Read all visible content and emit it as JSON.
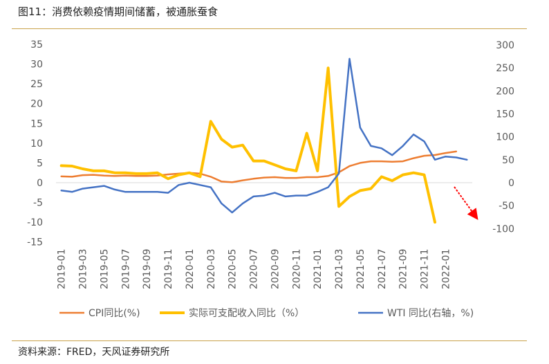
{
  "header": {
    "title": "图11：消费依赖疫情期间储蓄，被通胀蚕食"
  },
  "footer": {
    "source": "资料来源：FRED，天风证券研究所"
  },
  "colors": {
    "cpi": "#ed7d31",
    "income": "#ffc000",
    "wti": "#4472c4",
    "arrow": "#ff0000",
    "rule": "#c9a24a"
  },
  "chart_data": {
    "type": "line",
    "x": [
      "2019-01",
      "2019-02",
      "2019-03",
      "2019-04",
      "2019-05",
      "2019-06",
      "2019-07",
      "2019-08",
      "2019-09",
      "2019-10",
      "2019-11",
      "2019-12",
      "2020-01",
      "2020-02",
      "2020-03",
      "2020-04",
      "2020-05",
      "2020-06",
      "2020-07",
      "2020-08",
      "2020-09",
      "2020-10",
      "2020-11",
      "2020-12",
      "2021-01",
      "2021-02",
      "2021-03",
      "2021-04",
      "2021-05",
      "2021-06",
      "2021-07",
      "2021-08",
      "2021-09",
      "2021-10",
      "2021-11",
      "2021-12",
      "2022-01",
      "2022-02",
      "2022-03"
    ],
    "x_tick_labels": [
      "2019-01",
      "2019-03",
      "2019-05",
      "2019-07",
      "2019-09",
      "2019-11",
      "2020-01",
      "2020-03",
      "2020-05",
      "2020-07",
      "2020-09",
      "2020-11",
      "2021-01",
      "2021-03",
      "2021-05",
      "2021-07",
      "2021-09",
      "2021-11",
      "2022-01"
    ],
    "y_left": {
      "ylim": [
        -15,
        35
      ],
      "ticks": [
        "-15",
        "-10",
        "-5",
        "0",
        "5",
        "10",
        "15",
        "20",
        "25",
        "30",
        "35"
      ]
    },
    "y_right": {
      "ylim": [
        -100,
        300
      ],
      "ticks": [
        "-100",
        "-50",
        "0",
        "50",
        "100",
        "150",
        "200",
        "250",
        "300"
      ]
    },
    "grid": false,
    "legend": "bottom",
    "series": [
      {
        "name": "CPI同比(%)",
        "axis": "left",
        "values": [
          1.6,
          1.5,
          1.9,
          2.0,
          1.8,
          1.7,
          1.8,
          1.7,
          1.7,
          1.8,
          2.1,
          2.3,
          2.5,
          2.3,
          1.5,
          0.3,
          0.1,
          0.6,
          1.0,
          1.3,
          1.4,
          1.2,
          1.2,
          1.4,
          1.4,
          1.7,
          2.6,
          4.2,
          5.0,
          5.4,
          5.4,
          5.3,
          5.4,
          6.2,
          6.8,
          7.0,
          7.5,
          7.9,
          null
        ]
      },
      {
        "name": "实际可支配收入同比（%）",
        "axis": "left",
        "values": [
          4.3,
          4.2,
          3.5,
          3.0,
          3.0,
          2.5,
          2.5,
          2.3,
          2.3,
          2.5,
          1.0,
          2.0,
          2.5,
          1.5,
          15.5,
          11.0,
          9.0,
          9.5,
          5.5,
          5.5,
          4.5,
          3.5,
          3.0,
          12.5,
          3.0,
          29.0,
          -6.0,
          -3.5,
          -2.0,
          -1.5,
          1.5,
          0.5,
          2.0,
          2.5,
          2.0,
          -10.0,
          null,
          null,
          null
        ]
      },
      {
        "name": "WTI 同比(右轴，%)",
        "axis": "right",
        "values": [
          -17,
          -20,
          -13,
          -10,
          -7,
          -15,
          -20,
          -20,
          -20,
          -20,
          -22,
          -5,
          0,
          -5,
          -10,
          -45,
          -65,
          -45,
          -30,
          -28,
          -22,
          -30,
          -28,
          -28,
          -20,
          -10,
          20,
          270,
          120,
          80,
          75,
          60,
          80,
          105,
          90,
          50,
          57,
          55,
          50
        ]
      }
    ],
    "annotations": [
      {
        "type": "arrow",
        "color": "#ff0000",
        "description": "downward red arrow after 2022-01"
      }
    ]
  }
}
